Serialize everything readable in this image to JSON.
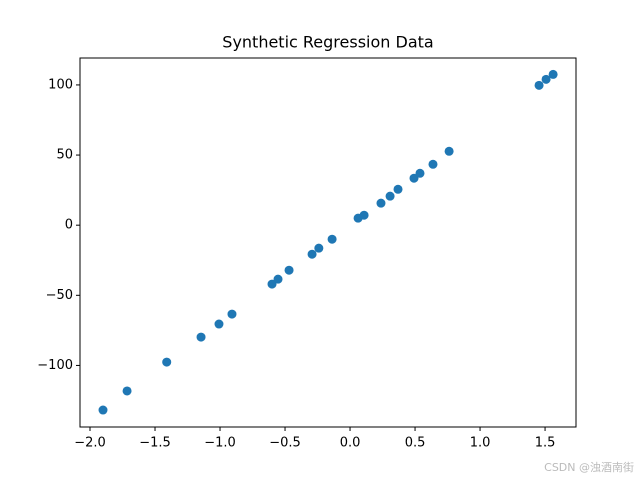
{
  "chart_data": {
    "type": "scatter",
    "title": "Synthetic Regression Data",
    "series": [
      {
        "color": "#1f77b4",
        "x": [
          -1.9,
          -1.715,
          -1.41,
          -1.146,
          -1.008,
          -0.908,
          -0.6,
          -0.554,
          -0.469,
          -0.292,
          -0.24,
          -0.138,
          0.062,
          0.108,
          0.238,
          0.308,
          0.369,
          0.492,
          0.538,
          0.638,
          0.762,
          1.454,
          1.508,
          1.562
        ],
        "values": [
          -131.8,
          -118.2,
          -97.6,
          -79.8,
          -70.5,
          -63.4,
          -42.0,
          -38.5,
          -32.1,
          -20.7,
          -16.4,
          -10.0,
          5.0,
          7.1,
          15.7,
          20.7,
          25.6,
          33.5,
          37.0,
          43.4,
          52.7,
          99.7,
          104.0,
          107.5
        ]
      }
    ],
    "xlim": [
      -2.077,
      1.738
    ],
    "ylim": [
      -143.9,
      119.2
    ],
    "xticks": [
      {
        "value": -2.0,
        "label": "−2.0"
      },
      {
        "value": -1.5,
        "label": "−1.5"
      },
      {
        "value": -1.0,
        "label": "−1.0"
      },
      {
        "value": -0.5,
        "label": "−0.5"
      },
      {
        "value": 0.0,
        "label": "0.0"
      },
      {
        "value": 0.5,
        "label": "0.5"
      },
      {
        "value": 1.0,
        "label": "1.0"
      },
      {
        "value": 1.5,
        "label": "1.5"
      }
    ],
    "yticks": [
      {
        "value": -100,
        "label": "−100"
      },
      {
        "value": -50,
        "label": "−50"
      },
      0,
      50,
      100
    ],
    "watermark": "CSDN @浊酒南街"
  }
}
